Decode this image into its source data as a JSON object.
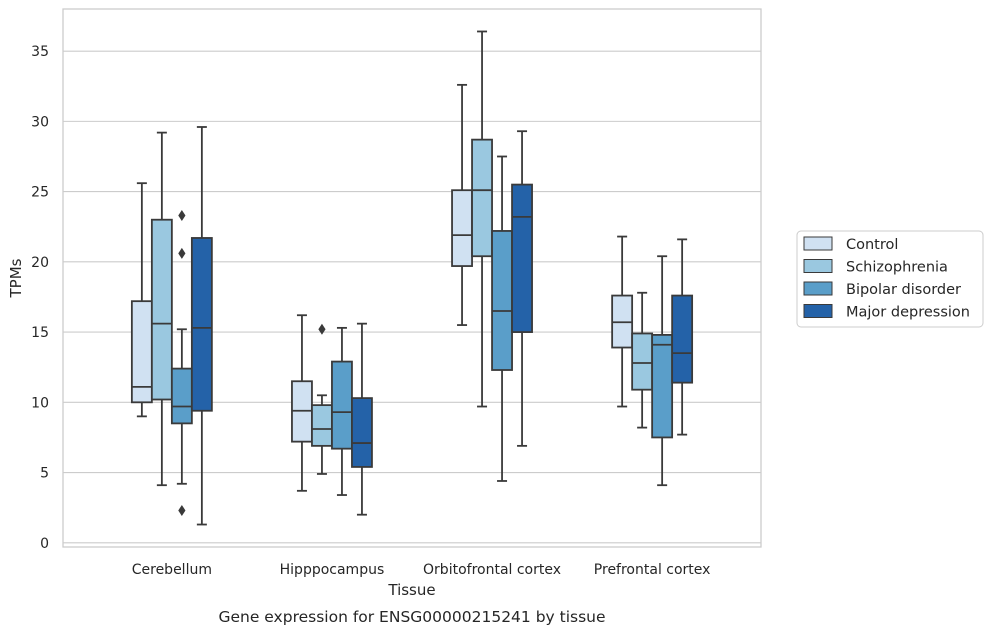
{
  "chart_data": {
    "type": "box",
    "xlabel": "Tissue",
    "ylabel": "TPMs",
    "caption": "Gene expression for ENSG00000215241 by tissue",
    "categories": [
      "Cerebellum",
      "Hipppocampus",
      "Orbitofrontal cortex",
      "Prefrontal cortex"
    ],
    "ylim": [
      -0.3,
      38
    ],
    "yticks": [
      0,
      5,
      10,
      15,
      20,
      25,
      30,
      35
    ],
    "grid": true,
    "legend_position": "right",
    "series": [
      {
        "name": "Control",
        "color": "#d0e1f2",
        "boxes": [
          {
            "whisker_low": 9.0,
            "q1": 10.0,
            "median": 11.1,
            "q3": 17.2,
            "whisker_high": 25.6,
            "outliers": []
          },
          {
            "whisker_low": 3.7,
            "q1": 7.2,
            "median": 9.4,
            "q3": 11.5,
            "whisker_high": 16.2,
            "outliers": []
          },
          {
            "whisker_low": 15.5,
            "q1": 19.7,
            "median": 21.9,
            "q3": 25.1,
            "whisker_high": 32.6,
            "outliers": []
          },
          {
            "whisker_low": 9.7,
            "q1": 13.9,
            "median": 15.7,
            "q3": 17.6,
            "whisker_high": 21.8,
            "outliers": []
          }
        ]
      },
      {
        "name": "Schizophrenia",
        "color": "#9ac8e0",
        "boxes": [
          {
            "whisker_low": 4.1,
            "q1": 10.2,
            "median": 15.6,
            "q3": 23.0,
            "whisker_high": 29.2,
            "outliers": []
          },
          {
            "whisker_low": 4.9,
            "q1": 6.9,
            "median": 8.1,
            "q3": 9.8,
            "whisker_high": 10.5,
            "outliers": [
              15.2
            ]
          },
          {
            "whisker_low": 9.7,
            "q1": 20.4,
            "median": 25.1,
            "q3": 28.7,
            "whisker_high": 36.4,
            "outliers": []
          },
          {
            "whisker_low": 8.2,
            "q1": 10.9,
            "median": 12.8,
            "q3": 14.9,
            "whisker_high": 17.8,
            "outliers": []
          }
        ]
      },
      {
        "name": "Bipolar disorder",
        "color": "#5a9ec9",
        "boxes": [
          {
            "whisker_low": 4.2,
            "q1": 8.5,
            "median": 9.7,
            "q3": 12.4,
            "whisker_high": 15.2,
            "outliers": [
              23.3,
              20.6,
              2.3
            ]
          },
          {
            "whisker_low": 3.4,
            "q1": 6.7,
            "median": 9.3,
            "q3": 12.9,
            "whisker_high": 15.3,
            "outliers": []
          },
          {
            "whisker_low": 4.4,
            "q1": 12.3,
            "median": 16.5,
            "q3": 22.2,
            "whisker_high": 27.5,
            "outliers": []
          },
          {
            "whisker_low": 4.1,
            "q1": 7.5,
            "median": 14.1,
            "q3": 14.8,
            "whisker_high": 20.4,
            "outliers": []
          }
        ]
      },
      {
        "name": "Major depression",
        "color": "#2462a8",
        "boxes": [
          {
            "whisker_low": 1.3,
            "q1": 9.4,
            "median": 15.3,
            "q3": 21.7,
            "whisker_high": 29.6,
            "outliers": []
          },
          {
            "whisker_low": 2.0,
            "q1": 5.4,
            "median": 7.1,
            "q3": 10.3,
            "whisker_high": 15.6,
            "outliers": []
          },
          {
            "whisker_low": 6.9,
            "q1": 15.0,
            "median": 23.2,
            "q3": 25.5,
            "whisker_high": 29.3,
            "outliers": []
          },
          {
            "whisker_low": 7.7,
            "q1": 11.4,
            "median": 13.5,
            "q3": 17.6,
            "whisker_high": 21.6,
            "outliers": []
          }
        ]
      }
    ]
  }
}
